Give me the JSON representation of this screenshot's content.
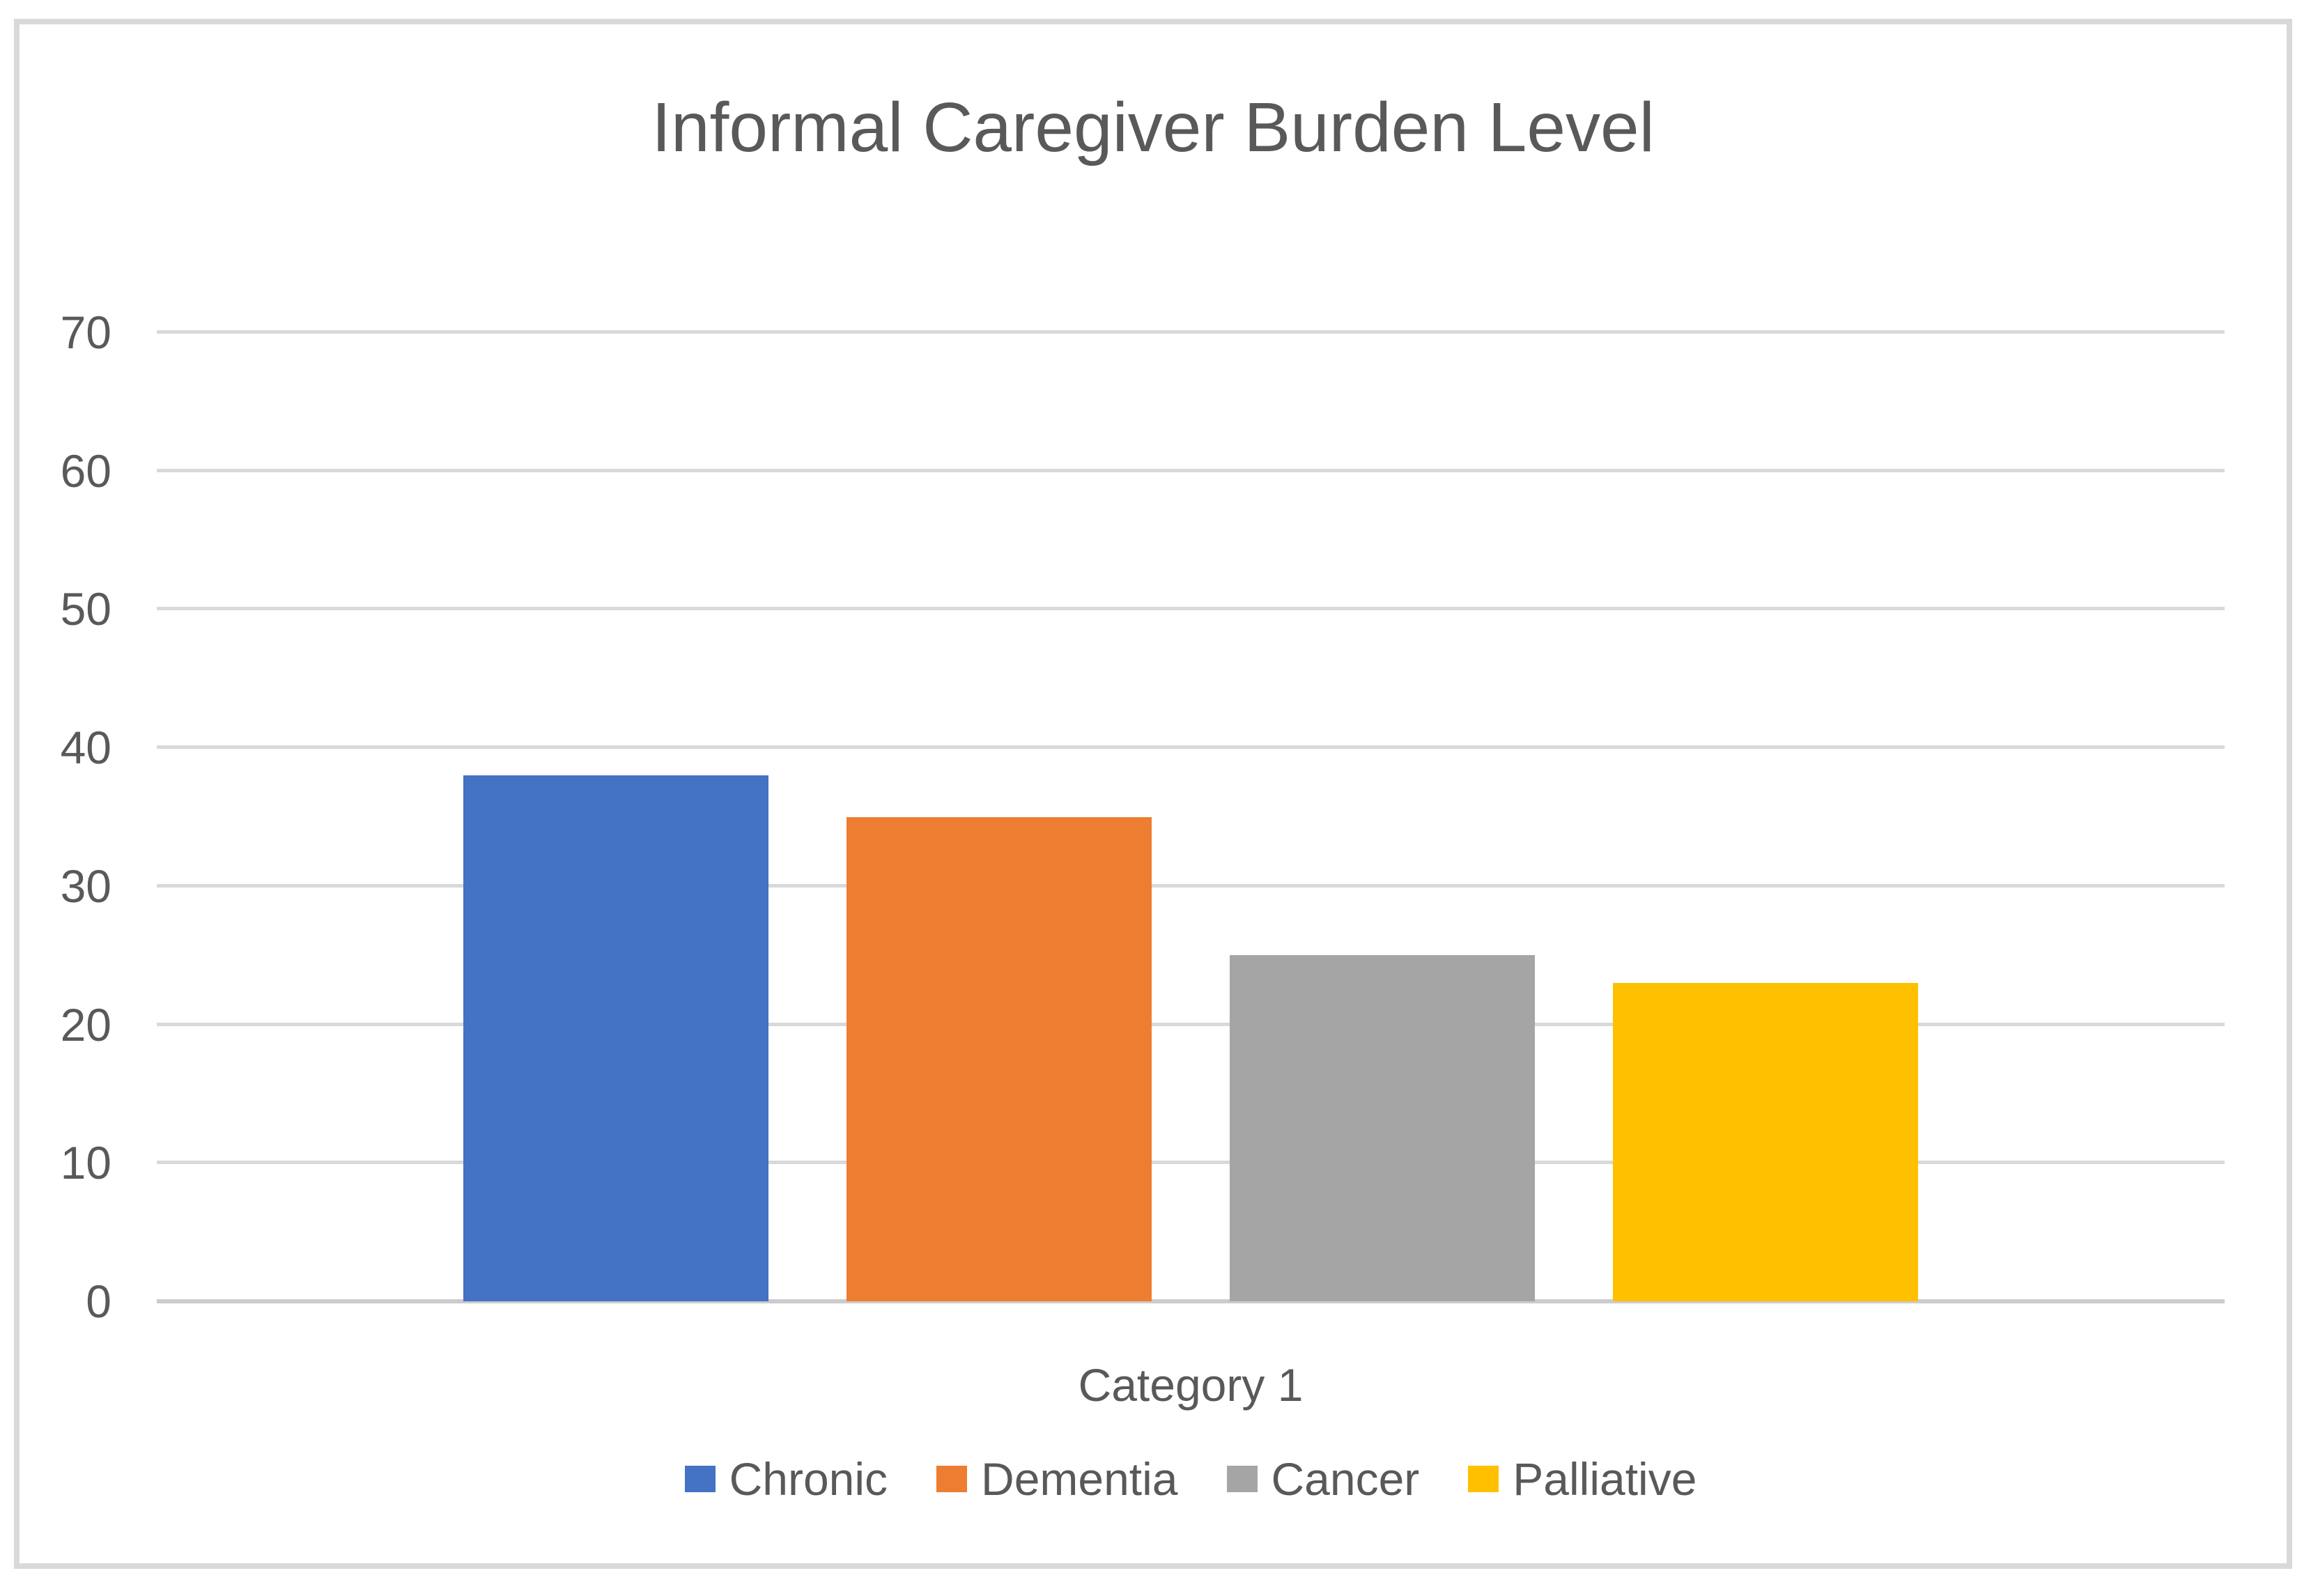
{
  "window": {
    "background": "#FFFFFF",
    "frame_border_color": "#D9D9D9"
  },
  "chart_data": {
    "type": "bar",
    "title": "Informal Caregiver Burden Level",
    "categories": [
      "Category 1"
    ],
    "series": [
      {
        "name": "Chronic",
        "values": [
          38
        ],
        "color": "#4472C4"
      },
      {
        "name": "Dementia",
        "values": [
          35
        ],
        "color": "#ED7D31"
      },
      {
        "name": "Cancer",
        "values": [
          25
        ],
        "color": "#A5A5A5"
      },
      {
        "name": "Palliative",
        "values": [
          23
        ],
        "color": "#FFC000"
      }
    ],
    "xlabel": "",
    "ylabel": "",
    "ylim": [
      0,
      70
    ],
    "yticks": [
      0,
      10,
      20,
      30,
      40,
      50,
      60,
      70
    ],
    "grid": true,
    "gridline_color": "#D9D9D9",
    "axis_line_color": "#CCCCCE",
    "text_color": "#595959",
    "legend_position": "bottom"
  }
}
